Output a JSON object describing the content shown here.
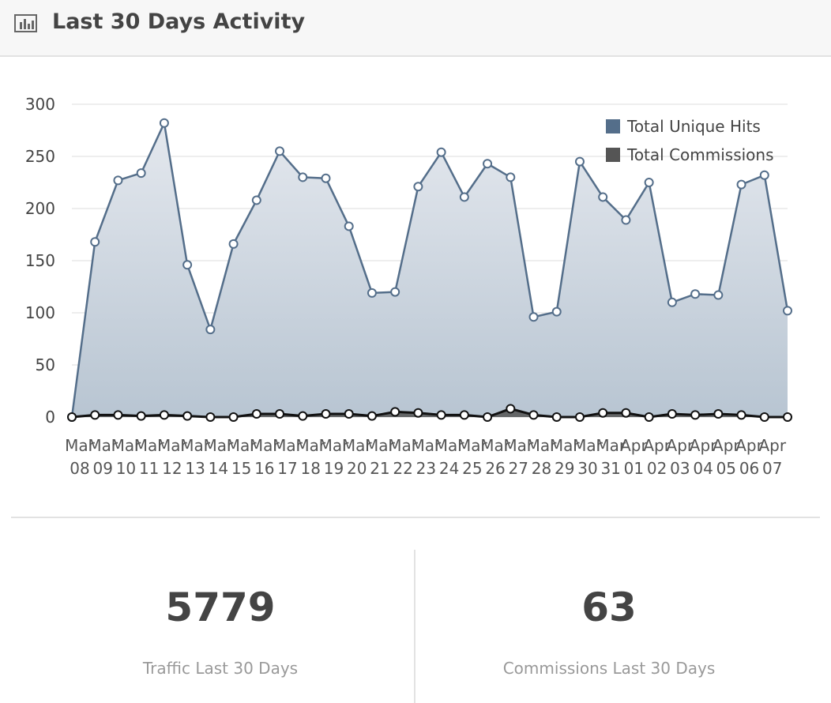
{
  "header": {
    "title": "Last 30 Days Activity"
  },
  "chart_data": {
    "type": "area",
    "categories": [
      "Mar 08",
      "Mar 09",
      "Mar 10",
      "Mar 11",
      "Mar 12",
      "Mar 13",
      "Mar 14",
      "Mar 15",
      "Mar 16",
      "Mar 17",
      "Mar 18",
      "Mar 19",
      "Mar 20",
      "Mar 21",
      "Mar 22",
      "Mar 23",
      "Mar 24",
      "Mar 25",
      "Mar 26",
      "Mar 27",
      "Mar 28",
      "Mar 29",
      "Mar 30",
      "Mar 31",
      "Apr 01",
      "Apr 02",
      "Apr 03",
      "Apr 04",
      "Apr 05",
      "Apr 06",
      "Apr 07",
      null
    ],
    "series": [
      {
        "name": "Total Unique Hits",
        "color": "#546e8a",
        "values": [
          0,
          168,
          227,
          234,
          282,
          146,
          84,
          166,
          208,
          255,
          230,
          229,
          183,
          119,
          120,
          221,
          254,
          211,
          243,
          230,
          96,
          101,
          245,
          211,
          189,
          225,
          110,
          118,
          117,
          223,
          232,
          102
        ]
      },
      {
        "name": "Total Commissions",
        "color": "#555555",
        "values": [
          0,
          2,
          2,
          1,
          2,
          1,
          0,
          0,
          3,
          3,
          1,
          3,
          3,
          1,
          5,
          4,
          2,
          2,
          0,
          8,
          2,
          0,
          0,
          4,
          4,
          0,
          3,
          2,
          3,
          2,
          0,
          0
        ]
      }
    ],
    "ylim": [
      0,
      300
    ],
    "yticks": [
      0,
      50,
      100,
      150,
      200,
      250,
      300
    ],
    "grid": true,
    "legend": "top-right"
  },
  "stats": [
    {
      "value": 5779,
      "label": "Traffic Last 30 Days"
    },
    {
      "value": 63,
      "label": "Commissions Last 30 Days"
    }
  ]
}
